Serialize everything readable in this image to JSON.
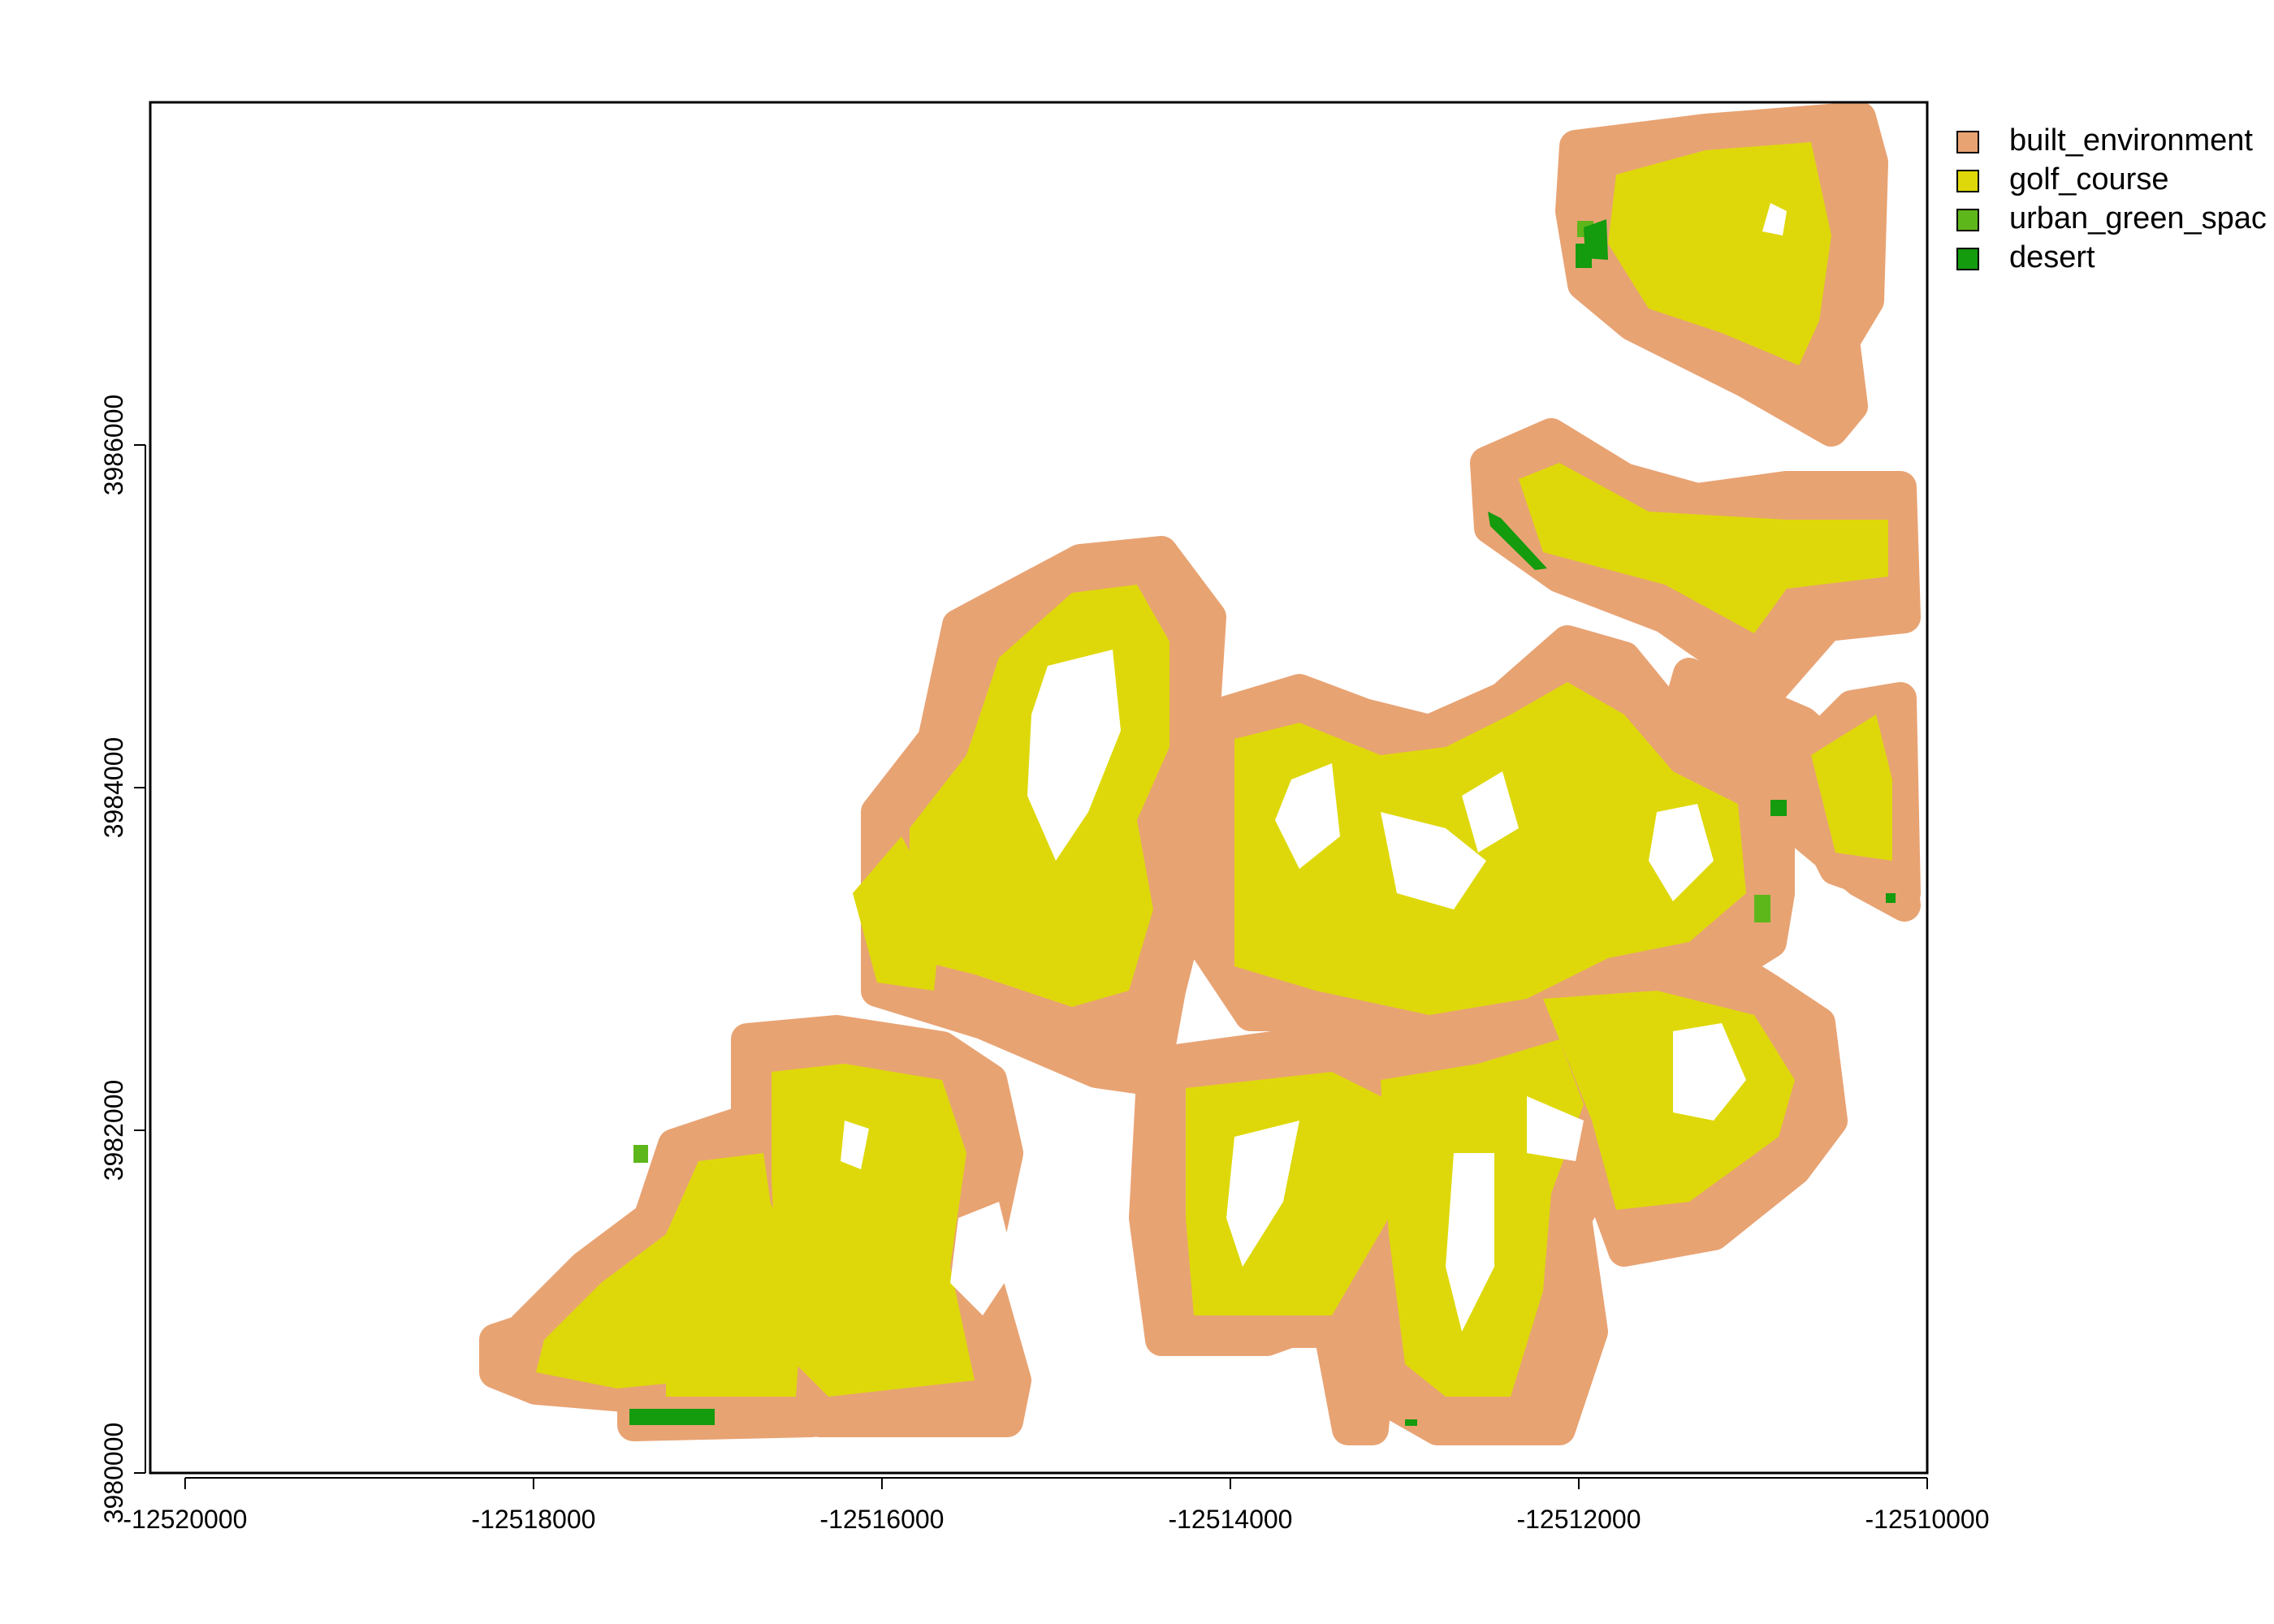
{
  "chart_data": {
    "type": "raster-map",
    "title": "",
    "xlabel": "",
    "ylabel": "",
    "xlim": [
      -12520200,
      -12510000
    ],
    "ylim": [
      3980000,
      3988000
    ],
    "x_ticks": [
      {
        "value": -12520000,
        "label": "-12520000"
      },
      {
        "value": -12518000,
        "label": "-12518000"
      },
      {
        "value": -12516000,
        "label": "-12516000"
      },
      {
        "value": -12514000,
        "label": "-12514000"
      },
      {
        "value": -12512000,
        "label": "-12512000"
      },
      {
        "value": -12510000,
        "label": "-12510000"
      }
    ],
    "y_ticks": [
      {
        "value": 3980000,
        "label": "3980000"
      },
      {
        "value": 3982000,
        "label": "3982000"
      },
      {
        "value": 3984000,
        "label": "3984000"
      },
      {
        "value": 3986000,
        "label": "3986000"
      }
    ],
    "legend": [
      {
        "name": "built_environment",
        "color": "#E8A373"
      },
      {
        "name": "golf_course",
        "color": "#DED80A"
      },
      {
        "name": "urban_green_spac",
        "color": "#5DB71B"
      },
      {
        "name": "desert",
        "color": "#149B0E"
      }
    ],
    "legend_position": "right",
    "grid": false
  }
}
